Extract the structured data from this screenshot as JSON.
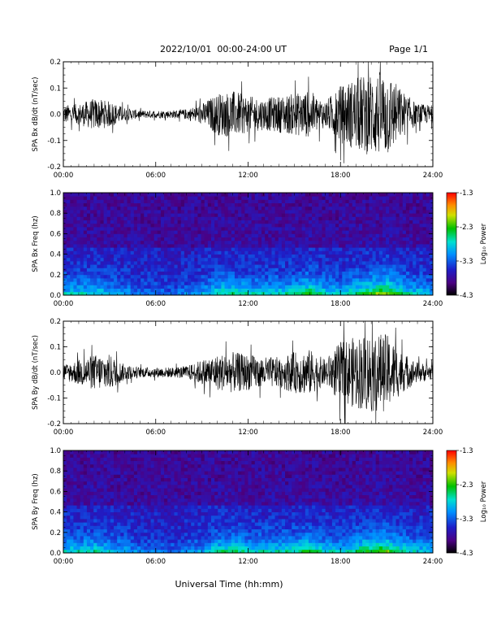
{
  "header": {
    "date_range": "2022/10/01  00:00-24:00 UT",
    "page": "Page 1/1"
  },
  "chart_data": [
    {
      "type": "line",
      "panel": "bx-waveform",
      "ylabel": "SPA Bx dB/dt (nT/sec)",
      "xlim": [
        "00:00",
        "24:00"
      ],
      "ylim": [
        -0.2,
        0.2
      ],
      "xticks": [
        "00:00",
        "06:00",
        "12:00",
        "18:00",
        "24:00"
      ],
      "yticks": [
        "-0.2",
        "-0.1",
        "0.0",
        "0.1",
        "0.2"
      ],
      "ytick_values": [
        -0.2,
        -0.1,
        0.0,
        0.1,
        0.2
      ],
      "line_color": "#000000",
      "envelope": {
        "hours": [
          0,
          1,
          2,
          3,
          4,
          5,
          6,
          7,
          8,
          9,
          10,
          11,
          12,
          13,
          14,
          15,
          16,
          17,
          18,
          19,
          20,
          21,
          22,
          23,
          24
        ],
        "amplitude": [
          0.035,
          0.04,
          0.06,
          0.05,
          0.025,
          0.015,
          0.015,
          0.015,
          0.02,
          0.04,
          0.08,
          0.09,
          0.07,
          0.06,
          0.07,
          0.08,
          0.09,
          0.05,
          0.11,
          0.14,
          0.16,
          0.17,
          0.09,
          0.04,
          0.035
        ]
      }
    },
    {
      "type": "heatmap",
      "panel": "bx-spectrogram",
      "ylabel": "SPA Bx Freq (hz)",
      "xlim": [
        "00:00",
        "24:00"
      ],
      "ylim": [
        0.0,
        1.0
      ],
      "xticks": [
        "00:00",
        "06:00",
        "12:00",
        "18:00",
        "24:00"
      ],
      "yticks": [
        "0.0",
        "0.2",
        "0.4",
        "0.6",
        "0.8",
        "1.0"
      ],
      "ytick_values": [
        0.0,
        0.2,
        0.4,
        0.6,
        0.8,
        1.0
      ],
      "colorbar": {
        "label": "Log₁₀ Power",
        "ticks": [
          "-1.3",
          "-2.3",
          "-3.3",
          "-4.3"
        ],
        "tick_values": [
          -1.3,
          -2.3,
          -3.3,
          -4.3
        ],
        "range": [
          -4.3,
          -1.3
        ]
      },
      "activity": {
        "hours": [
          0,
          2,
          3,
          5,
          7,
          9,
          10,
          11,
          12,
          14,
          15,
          16,
          17,
          18,
          19,
          20,
          21,
          22,
          23,
          24
        ],
        "level": [
          0.45,
          0.5,
          0.4,
          0.25,
          0.2,
          0.35,
          0.55,
          0.6,
          0.5,
          0.5,
          0.55,
          0.7,
          0.5,
          0.45,
          0.6,
          0.75,
          0.85,
          0.55,
          0.45,
          0.4
        ]
      }
    },
    {
      "type": "line",
      "panel": "by-waveform",
      "ylabel": "SPA By dB/dt (nT/sec)",
      "xlim": [
        "00:00",
        "24:00"
      ],
      "ylim": [
        -0.2,
        0.2
      ],
      "xticks": [
        "00:00",
        "06:00",
        "12:00",
        "18:00",
        "24:00"
      ],
      "yticks": [
        "-0.2",
        "-0.1",
        "0.0",
        "0.1",
        "0.2"
      ],
      "ytick_values": [
        -0.2,
        -0.1,
        0.0,
        0.1,
        0.2
      ],
      "line_color": "#000000",
      "envelope": {
        "hours": [
          0,
          1,
          2,
          3,
          4,
          5,
          6,
          7,
          8,
          9,
          10,
          11,
          12,
          13,
          14,
          15,
          16,
          17,
          18,
          19,
          20,
          21,
          22,
          23,
          24
        ],
        "amplitude": [
          0.03,
          0.05,
          0.07,
          0.07,
          0.03,
          0.02,
          0.02,
          0.02,
          0.025,
          0.05,
          0.07,
          0.08,
          0.07,
          0.06,
          0.06,
          0.08,
          0.09,
          0.05,
          0.12,
          0.14,
          0.16,
          0.15,
          0.08,
          0.04,
          0.03
        ]
      }
    },
    {
      "type": "heatmap",
      "panel": "by-spectrogram",
      "ylabel": "SPA By Freq (hz)",
      "xlim": [
        "00:00",
        "24:00"
      ],
      "ylim": [
        0.0,
        1.0
      ],
      "xticks": [
        "00:00",
        "06:00",
        "12:00",
        "18:00",
        "24:00"
      ],
      "yticks": [
        "0.0",
        "0.2",
        "0.4",
        "0.6",
        "0.8",
        "1.0"
      ],
      "ytick_values": [
        0.0,
        0.2,
        0.4,
        0.6,
        0.8,
        1.0
      ],
      "colorbar": {
        "label": "Log₁₀ Power",
        "ticks": [
          "-1.3",
          "-2.3",
          "-3.3",
          "-4.3"
        ],
        "tick_values": [
          -1.3,
          -2.3,
          -3.3,
          -4.3
        ],
        "range": [
          -4.3,
          -1.3
        ]
      },
      "activity": {
        "hours": [
          0,
          2,
          3,
          5,
          7,
          9,
          10,
          11,
          12,
          14,
          15,
          16,
          17,
          18,
          19,
          20,
          21,
          22,
          23,
          24
        ],
        "level": [
          0.45,
          0.55,
          0.45,
          0.25,
          0.2,
          0.35,
          0.55,
          0.6,
          0.5,
          0.5,
          0.55,
          0.7,
          0.5,
          0.45,
          0.6,
          0.75,
          0.8,
          0.55,
          0.45,
          0.4
        ]
      }
    }
  ],
  "xaxis_label": "Universal Time (hh:mm)",
  "colors": {
    "background": "#ffffff",
    "foreground": "#000000"
  }
}
